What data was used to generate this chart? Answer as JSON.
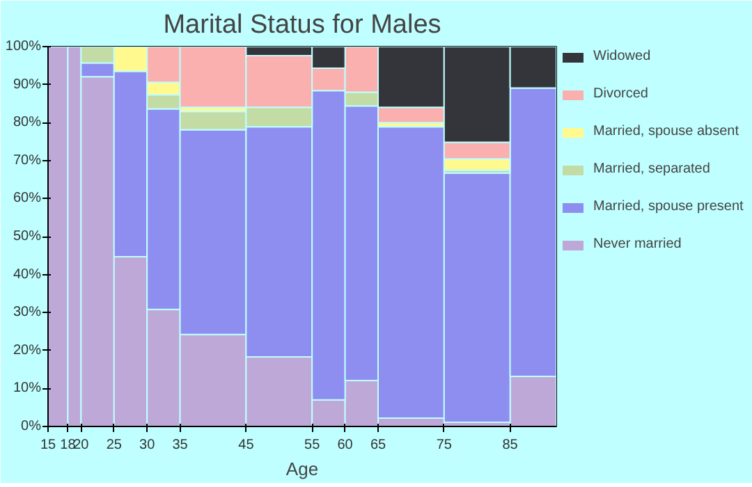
{
  "chart_data": {
    "type": "bar",
    "stacked": true,
    "title": "Marital Status for Males",
    "xlabel": "Age",
    "x": [
      16.5,
      19,
      22.5,
      27.5,
      32.5,
      40,
      50,
      57.5,
      62.5,
      70,
      80,
      88.5
    ],
    "xlim": [
      15,
      92
    ],
    "xticks": [
      15,
      18,
      20,
      25,
      30,
      35,
      45,
      55,
      60,
      65,
      75,
      85
    ],
    "ylim": [
      0,
      100
    ],
    "yticks": [
      {
        "value": 0,
        "label": "0%"
      },
      {
        "value": 10,
        "label": "10%"
      },
      {
        "value": 20,
        "label": "20%"
      },
      {
        "value": 30,
        "label": "30%"
      },
      {
        "value": 40,
        "label": "40%"
      },
      {
        "value": 50,
        "label": "50%"
      },
      {
        "value": 60,
        "label": "60%"
      },
      {
        "value": 70,
        "label": "70%"
      },
      {
        "value": 80,
        "label": "80%"
      },
      {
        "value": 90,
        "label": "90%"
      },
      {
        "value": 100,
        "label": "100%"
      }
    ],
    "legend": "right",
    "series": [
      {
        "name": "Never married",
        "color": "#bea8d8",
        "values": [
          100,
          100,
          92.1,
          44.7,
          30.8,
          24.2,
          18.3,
          7.0,
          12.1,
          2.2,
          1.1,
          13.2
        ]
      },
      {
        "name": "Married, spouse present",
        "color": "#8e8ef0",
        "values": [
          0,
          0,
          3.6,
          48.8,
          52.8,
          53.9,
          60.6,
          81.4,
          72.3,
          76.7,
          65.6,
          75.9
        ]
      },
      {
        "name": "Married, separated",
        "color": "#c3dba5",
        "values": [
          0,
          0,
          4.3,
          0,
          3.7,
          4.8,
          5.1,
          0,
          3.6,
          0,
          0.8,
          0
        ]
      },
      {
        "name": "Married, spouse absent",
        "color": "#fff98e",
        "values": [
          0,
          0,
          0,
          6.5,
          3.3,
          1.1,
          0,
          0,
          0,
          1.1,
          2.9,
          0
        ]
      },
      {
        "name": "Divorced",
        "color": "#f9b0ae",
        "values": [
          0,
          0,
          0,
          0,
          9.4,
          16.0,
          13.6,
          5.9,
          12.0,
          4.0,
          4.4,
          0
        ]
      },
      {
        "name": "Widowed",
        "color": "#34353a",
        "values": [
          0,
          0,
          0,
          0,
          0,
          0,
          2.4,
          5.7,
          0,
          16.0,
          25.2,
          10.9
        ]
      }
    ]
  }
}
